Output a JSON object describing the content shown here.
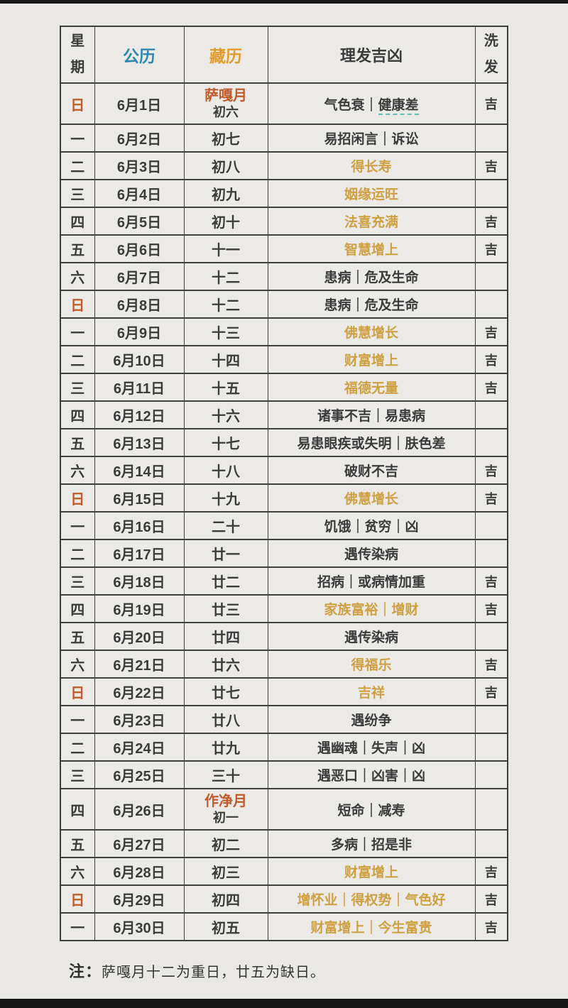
{
  "colors": {
    "page_bg": "#e9e8e5",
    "bar": "#181818",
    "border": "#3e3e3e",
    "text": "#3b3b3b",
    "gregorian_header_blue": "#2f86ae",
    "tibetan_header_amber": "#e09c2d",
    "sunday_red": "#c05a2b",
    "month_label_red": "#c05a2b",
    "auspicious_gold": "#cfa042",
    "underline_teal": "#63bfb4"
  },
  "table": {
    "headers": {
      "week": "星期",
      "gregorian": "公历",
      "tibetan": "藏历",
      "haircut": "理发吉凶",
      "wash": "洗发"
    },
    "rows": [
      {
        "week": "日",
        "week_red": true,
        "date": "6月1日",
        "month_label": "萨嘎月",
        "tibetan": "初六",
        "haircut": "气色衰｜健康差",
        "haircut_prefix": "气色衰｜",
        "haircut_underlined": "健康差",
        "auspicious": false,
        "wash": "吉"
      },
      {
        "week": "一",
        "week_red": false,
        "date": "6月2日",
        "tibetan": "初七",
        "haircut": "易招闲言｜诉讼",
        "auspicious": false,
        "wash": ""
      },
      {
        "week": "二",
        "week_red": false,
        "date": "6月3日",
        "tibetan": "初八",
        "haircut": "得长寿",
        "auspicious": true,
        "wash": "吉"
      },
      {
        "week": "三",
        "week_red": false,
        "date": "6月4日",
        "tibetan": "初九",
        "haircut": "姻缘运旺",
        "auspicious": true,
        "wash": ""
      },
      {
        "week": "四",
        "week_red": false,
        "date": "6月5日",
        "tibetan": "初十",
        "haircut": "法喜充满",
        "auspicious": true,
        "wash": "吉"
      },
      {
        "week": "五",
        "week_red": false,
        "date": "6月6日",
        "tibetan": "十一",
        "haircut": "智慧增上",
        "auspicious": true,
        "wash": "吉"
      },
      {
        "week": "六",
        "week_red": false,
        "date": "6月7日",
        "tibetan": "十二",
        "haircut": "患病｜危及生命",
        "auspicious": false,
        "wash": ""
      },
      {
        "week": "日",
        "week_red": true,
        "date": "6月8日",
        "tibetan": "十二",
        "haircut": "患病｜危及生命",
        "auspicious": false,
        "wash": ""
      },
      {
        "week": "一",
        "week_red": false,
        "date": "6月9日",
        "tibetan": "十三",
        "haircut": "佛慧增长",
        "auspicious": true,
        "wash": "吉"
      },
      {
        "week": "二",
        "week_red": false,
        "date": "6月10日",
        "tibetan": "十四",
        "haircut": "财富增上",
        "auspicious": true,
        "wash": "吉"
      },
      {
        "week": "三",
        "week_red": false,
        "date": "6月11日",
        "tibetan": "十五",
        "haircut": "福德无量",
        "auspicious": true,
        "wash": "吉"
      },
      {
        "week": "四",
        "week_red": false,
        "date": "6月12日",
        "tibetan": "十六",
        "haircut": "诸事不吉｜易患病",
        "auspicious": false,
        "wash": ""
      },
      {
        "week": "五",
        "week_red": false,
        "date": "6月13日",
        "tibetan": "十七",
        "haircut": "易患眼疾或失明｜肤色差",
        "auspicious": false,
        "wash": ""
      },
      {
        "week": "六",
        "week_red": false,
        "date": "6月14日",
        "tibetan": "十八",
        "haircut": "破财不吉",
        "auspicious": false,
        "wash": "吉"
      },
      {
        "week": "日",
        "week_red": true,
        "date": "6月15日",
        "tibetan": "十九",
        "haircut": "佛慧增长",
        "auspicious": true,
        "wash": "吉"
      },
      {
        "week": "一",
        "week_red": false,
        "date": "6月16日",
        "tibetan": "二十",
        "haircut": "饥饿｜贫穷｜凶",
        "auspicious": false,
        "wash": ""
      },
      {
        "week": "二",
        "week_red": false,
        "date": "6月17日",
        "tibetan": "廿一",
        "haircut": "遇传染病",
        "auspicious": false,
        "wash": ""
      },
      {
        "week": "三",
        "week_red": false,
        "date": "6月18日",
        "tibetan": "廿二",
        "haircut": "招病｜或病情加重",
        "auspicious": false,
        "wash": "吉"
      },
      {
        "week": "四",
        "week_red": false,
        "date": "6月19日",
        "tibetan": "廿三",
        "haircut": "家族富裕｜增财",
        "auspicious": true,
        "wash": "吉"
      },
      {
        "week": "五",
        "week_red": false,
        "date": "6月20日",
        "tibetan": "廿四",
        "haircut": "遇传染病",
        "auspicious": false,
        "wash": ""
      },
      {
        "week": "六",
        "week_red": false,
        "date": "6月21日",
        "tibetan": "廿六",
        "haircut": "得福乐",
        "auspicious": true,
        "wash": "吉"
      },
      {
        "week": "日",
        "week_red": true,
        "date": "6月22日",
        "tibetan": "廿七",
        "haircut": "吉祥",
        "auspicious": true,
        "wash": "吉"
      },
      {
        "week": "一",
        "week_red": false,
        "date": "6月23日",
        "tibetan": "廿八",
        "haircut": "遇纷争",
        "auspicious": false,
        "wash": ""
      },
      {
        "week": "二",
        "week_red": false,
        "date": "6月24日",
        "tibetan": "廿九",
        "haircut": "遇幽魂｜失声｜凶",
        "auspicious": false,
        "wash": ""
      },
      {
        "week": "三",
        "week_red": false,
        "date": "6月25日",
        "tibetan": "三十",
        "haircut": "遇恶口｜凶害｜凶",
        "auspicious": false,
        "wash": ""
      },
      {
        "week": "四",
        "week_red": false,
        "date": "6月26日",
        "month_label": "作净月",
        "tibetan": "初一",
        "haircut": "短命｜减寿",
        "auspicious": false,
        "wash": ""
      },
      {
        "week": "五",
        "week_red": false,
        "date": "6月27日",
        "tibetan": "初二",
        "haircut": "多病｜招是非",
        "auspicious": false,
        "wash": ""
      },
      {
        "week": "六",
        "week_red": false,
        "date": "6月28日",
        "tibetan": "初三",
        "haircut": "财富增上",
        "auspicious": true,
        "wash": "吉"
      },
      {
        "week": "日",
        "week_red": true,
        "date": "6月29日",
        "tibetan": "初四",
        "haircut": "增怀业｜得权势｜气色好",
        "auspicious": true,
        "wash": "吉"
      },
      {
        "week": "一",
        "week_red": false,
        "date": "6月30日",
        "tibetan": "初五",
        "haircut": "财富增上｜今生富贵",
        "auspicious": true,
        "wash": "吉"
      }
    ]
  },
  "note": {
    "prefix": "注：",
    "text": "萨嘎月十二为重日，廿五为缺日。"
  }
}
